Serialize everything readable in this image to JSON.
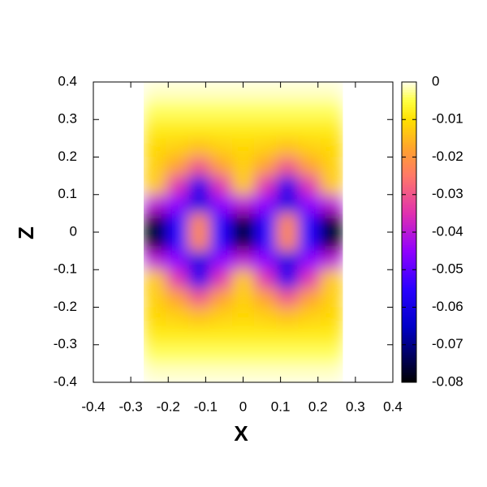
{
  "chart_data": {
    "type": "heatmap",
    "xlabel": "X",
    "ylabel": "Z",
    "x": [
      -0.2356,
      -0.1767,
      -0.1178,
      -0.0589,
      0,
      0.0589,
      0.1178,
      0.1767,
      0.2356
    ],
    "y": [
      0.375,
      0.325,
      0.275,
      0.225,
      0.175,
      0.125,
      0.075,
      0.025,
      -0.025,
      -0.075,
      -0.125,
      -0.175,
      -0.225,
      -0.275,
      -0.325,
      -0.375
    ],
    "values": [
      [
        -0.001,
        -0.001,
        -0.001,
        -0.001,
        -0.001,
        -0.001,
        -0.001,
        -0.001,
        -0.001
      ],
      [
        -0.004,
        -0.004,
        -0.004,
        -0.004,
        -0.004,
        -0.004,
        -0.004,
        -0.004,
        -0.004
      ],
      [
        -0.008,
        -0.008,
        -0.008,
        -0.008,
        -0.008,
        -0.008,
        -0.008,
        -0.008,
        -0.008
      ],
      [
        -0.011,
        -0.012,
        -0.014,
        -0.012,
        -0.011,
        -0.012,
        -0.014,
        -0.012,
        -0.011
      ],
      [
        -0.012,
        -0.018,
        -0.03,
        -0.018,
        -0.012,
        -0.018,
        -0.03,
        -0.018,
        -0.012
      ],
      [
        -0.013,
        -0.035,
        -0.058,
        -0.035,
        -0.013,
        -0.035,
        -0.058,
        -0.035,
        -0.013
      ],
      [
        -0.04,
        -0.045,
        -0.06,
        -0.045,
        -0.04,
        -0.045,
        -0.06,
        -0.045,
        -0.04
      ],
      [
        -0.078,
        -0.055,
        -0.022,
        -0.055,
        -0.078,
        -0.055,
        -0.022,
        -0.055,
        -0.078
      ],
      [
        -0.078,
        -0.055,
        -0.022,
        -0.055,
        -0.078,
        -0.055,
        -0.022,
        -0.055,
        -0.078
      ],
      [
        -0.04,
        -0.045,
        -0.06,
        -0.045,
        -0.04,
        -0.045,
        -0.06,
        -0.045,
        -0.04
      ],
      [
        -0.013,
        -0.035,
        -0.058,
        -0.035,
        -0.013,
        -0.035,
        -0.058,
        -0.035,
        -0.013
      ],
      [
        -0.012,
        -0.018,
        -0.03,
        -0.018,
        -0.012,
        -0.018,
        -0.03,
        -0.018,
        -0.012
      ],
      [
        -0.011,
        -0.012,
        -0.014,
        -0.012,
        -0.011,
        -0.012,
        -0.014,
        -0.012,
        -0.011
      ],
      [
        -0.008,
        -0.008,
        -0.008,
        -0.008,
        -0.008,
        -0.008,
        -0.008,
        -0.008,
        -0.008
      ],
      [
        -0.004,
        -0.004,
        -0.004,
        -0.004,
        -0.004,
        -0.004,
        -0.004,
        -0.004,
        -0.004
      ],
      [
        -0.001,
        -0.001,
        -0.001,
        -0.001,
        -0.001,
        -0.001,
        -0.001,
        -0.001,
        -0.001
      ]
    ],
    "xlim": [
      -0.4,
      0.4
    ],
    "xticks": [
      -0.4,
      -0.3,
      -0.2,
      -0.1,
      0,
      0.1,
      0.2,
      0.3,
      0.4
    ],
    "ylim": [
      -0.4,
      0.4
    ],
    "yticks": [
      -0.4,
      -0.3,
      -0.2,
      -0.1,
      0,
      0.1,
      0.2,
      0.3,
      0.4
    ],
    "cblim": [
      -0.08,
      0
    ],
    "cbticks": [
      -0.08,
      -0.07,
      -0.06,
      -0.05,
      -0.04,
      -0.03,
      -0.02,
      -0.01,
      0
    ],
    "colorscale": [
      {
        "value": -0.08,
        "color": "#000000"
      },
      {
        "value": -0.065,
        "color": "#0000c8"
      },
      {
        "value": -0.055,
        "color": "#2a00ff"
      },
      {
        "value": -0.045,
        "color": "#9000ff"
      },
      {
        "value": -0.035,
        "color": "#e030b0"
      },
      {
        "value": -0.025,
        "color": "#ff7868"
      },
      {
        "value": -0.018,
        "color": "#ffa030"
      },
      {
        "value": -0.01,
        "color": "#ffe000"
      },
      {
        "value": -0.005,
        "color": "#ffff40"
      },
      {
        "value": 0,
        "color": "#ffffe8"
      }
    ]
  }
}
